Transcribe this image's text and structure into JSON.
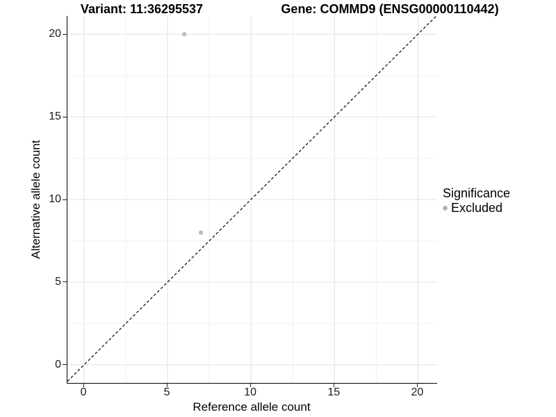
{
  "titles": {
    "left": "Variant: 11:36295537",
    "right": "Gene: COMMD9 (ENSG00000110442)"
  },
  "legend": {
    "title": "Significance",
    "items": [
      {
        "label": "Excluded",
        "color": "#b5b5b5"
      }
    ]
  },
  "chart_data": {
    "type": "scatter",
    "title": "Variant: 11:36295537   Gene: COMMD9 (ENSG00000110442)",
    "xlabel": "Reference allele count",
    "ylabel": "Alternative allele count",
    "xlim": [
      -1,
      21.15
    ],
    "ylim": [
      -1.1,
      21.1
    ],
    "xticks": [
      0,
      5,
      10,
      15,
      20
    ],
    "yticks": [
      0,
      5,
      10,
      15,
      20
    ],
    "minor_xticks": [
      2.5,
      7.5,
      12.5,
      17.5
    ],
    "minor_yticks": [
      2.5,
      7.5,
      12.5,
      17.5
    ],
    "grid": true,
    "legend_position": "right",
    "series": [
      {
        "name": "Excluded",
        "color": "#bebebe",
        "points": [
          [
            6,
            20
          ],
          [
            7,
            8
          ]
        ]
      }
    ],
    "reference_line": {
      "type": "identity",
      "slope": 1,
      "intercept": 0,
      "style": "dashed",
      "color": "#000000"
    },
    "colors": {
      "background": "#ffffff",
      "grid_major": "#e3e3e3",
      "grid_minor": "#f0f0f0",
      "axis_line": "#000000",
      "point": "#bebebe"
    }
  }
}
